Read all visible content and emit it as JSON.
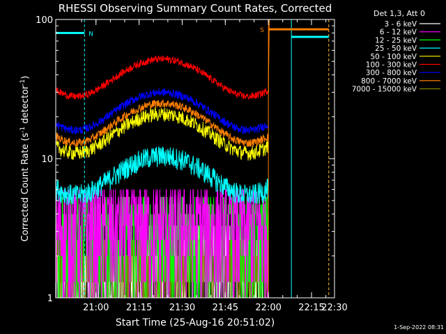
{
  "chart_data": {
    "type": "line",
    "title": "RHESSI Observing Summary Count Rates, Corrected",
    "xlabel": "Start Time (25-Aug-16 20:51:02)",
    "ylabel_main": "Corrected Count Rate (s",
    "ylabel_sup1": "-1",
    "ylabel_mid": " detector",
    "ylabel_sup2": "-1",
    "ylabel_end": ")",
    "yscale": "log",
    "ylim": [
      1,
      100
    ],
    "xlim_minutes": [
      -5,
      92
    ],
    "x_ticks": [
      {
        "label": "21:00",
        "min": 9
      },
      {
        "label": "21:15",
        "min": 24
      },
      {
        "label": "21:30",
        "min": 39
      },
      {
        "label": "21:45",
        "min": 54
      },
      {
        "label": "22:00",
        "min": 69
      },
      {
        "label": "22:15",
        "min": 84
      },
      {
        "label": "22:30",
        "min": 99
      }
    ],
    "y_ticks": [
      {
        "label": "1",
        "value": 1
      },
      {
        "label": "10",
        "value": 10
      },
      {
        "label": "100",
        "value": 100
      }
    ],
    "legend_title": "Det 1,3, Att 0",
    "legend_position": "top-right",
    "series": [
      {
        "name": "3 - 6 keV",
        "color": "#ffffff",
        "base": 1.6,
        "amp": 0.0,
        "noise": 0.45,
        "quant": true
      },
      {
        "name": "6 - 12 keV",
        "color": "#ff00ff",
        "base": 4.5,
        "amp": 0.0,
        "noise": 0.25,
        "quant": true
      },
      {
        "name": "12 - 25 keV",
        "color": "#00ff00",
        "base": 4.0,
        "amp": 0.0,
        "noise": 0.3,
        "quant": true
      },
      {
        "name": "25 - 50 keV",
        "color": "#00ffff",
        "base": 8.0,
        "amp": 2.5,
        "noise": 0.18,
        "quant": false
      },
      {
        "name": "50 - 100 keV",
        "color": "#ffff00",
        "base": 16.0,
        "amp": 5.0,
        "noise": 0.12,
        "quant": false
      },
      {
        "name": "100 - 300 keV",
        "color": "#ff0000",
        "base": 40.0,
        "amp": 12.0,
        "noise": 0.06,
        "quant": false
      },
      {
        "name": "300 - 800 keV",
        "color": "#0000ff",
        "base": 23.0,
        "amp": 7.0,
        "noise": 0.07,
        "quant": false
      },
      {
        "name": "800 - 7000 keV",
        "color": "#ff8000",
        "base": 19.0,
        "amp": 6.0,
        "noise": 0.07,
        "quant": false
      },
      {
        "name": "7000 - 15000 keV",
        "color": "#808000",
        "base": 2.0,
        "amp": 0.0,
        "noise": 0.4,
        "quant": true
      }
    ],
    "annotations": {
      "night_label": "N",
      "saa_label": "S",
      "night_bar": {
        "start_min": -5,
        "end_min": 5,
        "value": 80,
        "color": "#00ffff"
      },
      "saa_bar": {
        "start_min": 69,
        "end_min": 90,
        "value": 85,
        "color": "#ff8000"
      },
      "night_bar_2": {
        "start_min": 77,
        "end_min": 90,
        "value": 75,
        "color": "#00ffff"
      },
      "vlines": [
        {
          "min": -5,
          "color": "#00ffff",
          "style": "solid"
        },
        {
          "min": 5,
          "color": "#00ffff",
          "style": "dashed"
        },
        {
          "min": 69,
          "color": "#ff8000",
          "style": "solid"
        },
        {
          "min": 77,
          "color": "#00ffff",
          "style": "solid"
        },
        {
          "min": 90,
          "color": "#00ffff",
          "style": "dashed"
        },
        {
          "min": 90,
          "color": "#ff8000",
          "style": "dashed"
        }
      ],
      "data_end_min": 69
    }
  },
  "footer": {
    "timestamp": "1-Sep-2022 08:31"
  }
}
